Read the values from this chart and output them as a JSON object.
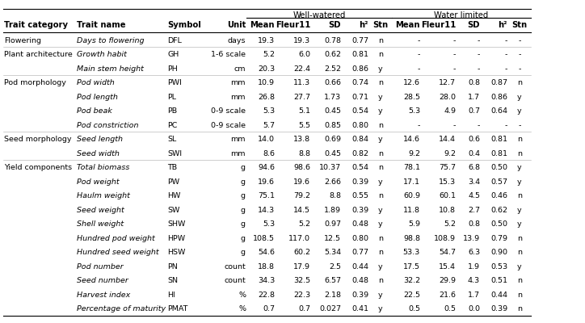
{
  "col_headers": [
    "Trait category",
    "Trait name",
    "Symbol",
    "Unit",
    "Mean",
    "Fleur11",
    "SD",
    "h²",
    "Stn",
    "Mean",
    "Fleur11",
    "SD",
    "h²",
    "Stn"
  ],
  "rows": [
    [
      "Flowering",
      "Days to flowering",
      "DFL",
      "days",
      "19.3",
      "19.3",
      "0.78",
      "0.77",
      "n",
      "-",
      "-",
      "-",
      "-",
      "-"
    ],
    [
      "Plant architecture",
      "Growth habit",
      "GH",
      "1-6 scale",
      "5.2",
      "6.0",
      "0.62",
      "0.81",
      "n",
      "-",
      "-",
      "-",
      "-",
      "-"
    ],
    [
      "",
      "Main stem height",
      "PH",
      "cm",
      "20.3",
      "22.4",
      "2.52",
      "0.86",
      "y",
      "-",
      "-",
      "-",
      "-",
      "-"
    ],
    [
      "Pod morphology",
      "Pod width",
      "PWI",
      "mm",
      "10.9",
      "11.3",
      "0.66",
      "0.74",
      "n",
      "12.6",
      "12.7",
      "0.8",
      "0.87",
      "n"
    ],
    [
      "",
      "Pod length",
      "PL",
      "mm",
      "26.8",
      "27.7",
      "1.73",
      "0.71",
      "y",
      "28.5",
      "28.0",
      "1.7",
      "0.86",
      "y"
    ],
    [
      "",
      "Pod beak",
      "PB",
      "0-9 scale",
      "5.3",
      "5.1",
      "0.45",
      "0.54",
      "y",
      "5.3",
      "4.9",
      "0.7",
      "0.64",
      "y"
    ],
    [
      "",
      "Pod constriction",
      "PC",
      "0-9 scale",
      "5.7",
      "5.5",
      "0.85",
      "0.80",
      "n",
      "-",
      "-",
      "-",
      "-",
      "-"
    ],
    [
      "Seed morphology",
      "Seed length",
      "SL",
      "mm",
      "14.0",
      "13.8",
      "0.69",
      "0.84",
      "y",
      "14.6",
      "14.4",
      "0.6",
      "0.81",
      "n"
    ],
    [
      "",
      "Seed width",
      "SWI",
      "mm",
      "8.6",
      "8.8",
      "0.45",
      "0.82",
      "n",
      "9.2",
      "9.2",
      "0.4",
      "0.81",
      "n"
    ],
    [
      "Yield components",
      "Total biomass",
      "TB",
      "g",
      "94.6",
      "98.6",
      "10.37",
      "0.54",
      "n",
      "78.1",
      "75.7",
      "6.8",
      "0.50",
      "y"
    ],
    [
      "",
      "Pod weight",
      "PW",
      "g",
      "19.6",
      "19.6",
      "2.66",
      "0.39",
      "y",
      "17.1",
      "15.3",
      "3.4",
      "0.57",
      "y"
    ],
    [
      "",
      "Haulm weight",
      "HW",
      "g",
      "75.1",
      "79.2",
      "8.8",
      "0.55",
      "n",
      "60.9",
      "60.1",
      "4.5",
      "0.46",
      "n"
    ],
    [
      "",
      "Seed weight",
      "SW",
      "g",
      "14.3",
      "14.5",
      "1.89",
      "0.39",
      "y",
      "11.8",
      "10.8",
      "2.7",
      "0.62",
      "y"
    ],
    [
      "",
      "Shell weight",
      "SHW",
      "g",
      "5.3",
      "5.2",
      "0.97",
      "0.48",
      "y",
      "5.9",
      "5.2",
      "0.8",
      "0.50",
      "y"
    ],
    [
      "",
      "Hundred pod weight",
      "HPW",
      "g",
      "108.5",
      "117.0",
      "12.5",
      "0.80",
      "n",
      "98.8",
      "108.9",
      "13.9",
      "0.79",
      "n"
    ],
    [
      "",
      "Hundred seed weight",
      "HSW",
      "g",
      "54.6",
      "60.2",
      "5.34",
      "0.77",
      "n",
      "53.3",
      "54.7",
      "6.3",
      "0.90",
      "n"
    ],
    [
      "",
      "Pod number",
      "PN",
      "count",
      "18.8",
      "17.9",
      "2.5",
      "0.44",
      "y",
      "17.5",
      "15.4",
      "1.9",
      "0.53",
      "y"
    ],
    [
      "",
      "Seed number",
      "SN",
      "count",
      "34.3",
      "32.5",
      "6.57",
      "0.48",
      "n",
      "32.2",
      "29.9",
      "4.3",
      "0.51",
      "n"
    ],
    [
      "",
      "Harvest index",
      "HI",
      "%",
      "22.8",
      "22.3",
      "2.18",
      "0.39",
      "y",
      "22.5",
      "21.6",
      "1.7",
      "0.44",
      "n"
    ],
    [
      "",
      "Percentage of maturity",
      "PMAT",
      "%",
      "0.7",
      "0.7",
      "0.027",
      "0.41",
      "y",
      "0.5",
      "0.5",
      "0.0",
      "0.39",
      "n"
    ]
  ],
  "background_color": "#ffffff",
  "text_color": "#000000",
  "font_size": 6.8,
  "header_font_size": 7.2
}
